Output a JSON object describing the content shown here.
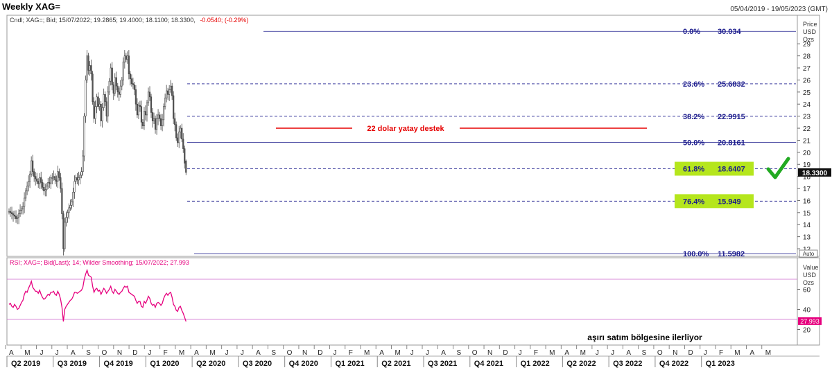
{
  "header": {
    "title": "Weekly XAG=",
    "date_range": "05/04/2019 - 19/05/2023 (GMT)"
  },
  "price_panel": {
    "info_prefix": "Cndl; XAG=; Bid; 15/07/2022; 19.2865; 19.4000; 18.1100; 18.3300,",
    "info_change": "-0.0540; (-0.29%)",
    "axis_title": [
      "Price",
      "USD",
      "Ozs"
    ],
    "ticks": [
      12,
      13,
      14,
      15,
      16,
      17,
      18,
      19,
      20,
      21,
      22,
      23,
      24,
      25,
      26,
      27,
      28,
      29
    ],
    "last_price": "18.3300",
    "auto_label": "Auto",
    "support_label": "22 dolar yatay destek",
    "colors": {
      "candle": "#555555",
      "fib": "#1a1a8c",
      "support": "#e60000",
      "highlight": "#b5e61d",
      "check": "#22aa22"
    }
  },
  "fib_levels": [
    {
      "pct": "0.0%",
      "value": "30.034",
      "price": 30.034,
      "solid": true
    },
    {
      "pct": "23.6%",
      "value": "25.6832",
      "price": 25.6832,
      "solid": false
    },
    {
      "pct": "38.2%",
      "value": "22.9915",
      "price": 22.9915,
      "solid": false
    },
    {
      "pct": "50.0%",
      "value": "20.8161",
      "price": 20.8161,
      "solid": true
    },
    {
      "pct": "61.8%",
      "value": "18.6407",
      "price": 18.6407,
      "solid": false,
      "highlight": true
    },
    {
      "pct": "76.4%",
      "value": "15.949",
      "price": 15.949,
      "solid": false,
      "highlight": true
    },
    {
      "pct": "100.0%",
      "value": "11.5982",
      "price": 11.5982,
      "solid": true
    }
  ],
  "rsi_panel": {
    "info": "RSI; XAG=; Bid(Last); 14; Wilder Smoothing; 15/07/2022; 27.993",
    "axis_title": [
      "Value",
      "USD",
      "Ozs"
    ],
    "ticks": [
      20,
      40,
      60
    ],
    "bounds": [
      30,
      70
    ],
    "last_value": "27.993",
    "annotation": "aşırı satım bölgesine ilerliyor",
    "colors": {
      "line": "#e6007e",
      "bound": "#cc66cc"
    }
  },
  "time_axis": {
    "months": [
      "A",
      "M",
      "J",
      "J",
      "A",
      "S",
      "O",
      "N",
      "D",
      "J",
      "F",
      "M",
      "A",
      "M",
      "J",
      "J",
      "A",
      "S",
      "O",
      "N",
      "D",
      "J",
      "F",
      "M",
      "A",
      "M",
      "J",
      "J",
      "A",
      "S",
      "O",
      "N",
      "D",
      "J",
      "F",
      "M",
      "A",
      "M",
      "J",
      "J",
      "A",
      "S",
      "O",
      "N",
      "D",
      "J",
      "F",
      "M",
      "A",
      "M"
    ],
    "quarters": [
      "Q2 2019",
      "Q3 2019",
      "Q4 2019",
      "Q1 2020",
      "Q2 2020",
      "Q3 2020",
      "Q4 2020",
      "Q1 2021",
      "Q2 2021",
      "Q3 2021",
      "Q4 2021",
      "Q1 2022",
      "Q2 2022",
      "Q3 2022",
      "Q4 2022",
      "Q1 2023"
    ]
  },
  "chart_data": {
    "type": "candlestick",
    "title": "Weekly XAG=",
    "ylabel": "Price USD Ozs",
    "ylim": [
      11,
      31
    ],
    "x_range": [
      "2019-04-05",
      "2023-05-19"
    ],
    "last_bar": {
      "date": "2022-07-15",
      "open": 19.2865,
      "high": 19.4,
      "low": 18.11,
      "close": 18.33
    },
    "weekly_close": [
      15.1,
      15.0,
      14.9,
      14.8,
      14.7,
      14.5,
      14.6,
      14.9,
      15.2,
      15.3,
      15.5,
      16.2,
      16.8,
      17.2,
      17.6,
      18.2,
      19.3,
      18.4,
      18.0,
      17.8,
      17.6,
      17.4,
      17.9,
      17.5,
      17.1,
      16.8,
      16.9,
      17.2,
      17.5,
      17.4,
      17.9,
      17.9,
      18.0,
      17.7,
      17.6,
      18.4,
      17.9,
      17.0,
      14.9,
      12.0,
      14.2,
      14.6,
      15.0,
      15.4,
      15.6,
      15.9,
      16.7,
      17.6,
      17.9,
      17.7,
      17.9,
      18.1,
      18.4,
      19.7,
      23.0,
      26.0,
      28.0,
      26.8,
      27.2,
      26.5,
      24.2,
      22.8,
      23.8,
      24.6,
      23.8,
      24.0,
      22.6,
      23.7,
      24.8,
      24.2,
      23.0,
      25.0,
      25.9,
      27.0,
      25.6,
      24.9,
      26.2,
      25.5,
      25.0,
      24.8,
      25.5,
      26.0,
      27.5,
      28.0,
      27.7,
      28.0,
      26.5,
      26.1,
      25.7,
      25.6,
      25.2,
      24.0,
      23.1,
      23.9,
      23.8,
      22.5,
      22.2,
      23.4,
      23.1,
      24.1,
      25.0,
      24.6,
      23.3,
      22.6,
      22.8,
      21.9,
      22.8,
      23.1,
      22.8,
      22.2,
      22.7,
      23.8,
      24.5,
      25.1,
      24.8,
      25.2,
      25.5,
      24.7,
      22.8,
      22.3,
      21.2,
      20.8,
      21.7,
      22.0,
      21.1,
      20.3,
      19.1,
      18.33
    ],
    "rsi": {
      "name": "RSI 14",
      "ylim": [
        10,
        85
      ],
      "bounds": [
        30,
        70
      ],
      "last": 27.993,
      "values": [
        45,
        46,
        43,
        42,
        45,
        43,
        40,
        41,
        44,
        47,
        49,
        55,
        58,
        57,
        61,
        64,
        68,
        62,
        60,
        58,
        58,
        56,
        59,
        55,
        52,
        50,
        51,
        53,
        55,
        54,
        57,
        57,
        58,
        55,
        54,
        58,
        55,
        50,
        42,
        28,
        40,
        43,
        45,
        47,
        49,
        50,
        53,
        57,
        57,
        56,
        57,
        58,
        59,
        62,
        70,
        75,
        79,
        74,
        73,
        72,
        63,
        57,
        60,
        61,
        58,
        59,
        55,
        58,
        61,
        59,
        56,
        58,
        60,
        63,
        58,
        56,
        60,
        58,
        56,
        55,
        57,
        58,
        61,
        63,
        62,
        63,
        57,
        56,
        55,
        54,
        53,
        49,
        46,
        48,
        48,
        43,
        42,
        48,
        46,
        49,
        53,
        51,
        46,
        44,
        45,
        42,
        46,
        47,
        46,
        44,
        46,
        51,
        54,
        56,
        54,
        56,
        57,
        52,
        45,
        43,
        39,
        38,
        42,
        43,
        39,
        36,
        32,
        27.993
      ]
    }
  }
}
